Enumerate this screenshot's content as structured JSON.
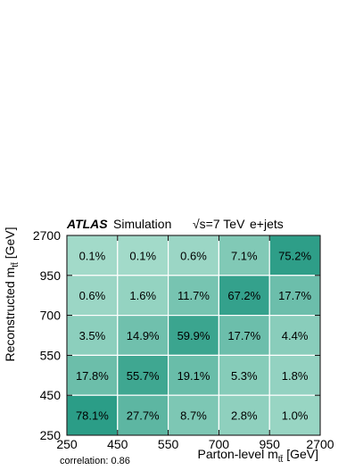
{
  "header": {
    "experiment": "ATLAS",
    "label": "Simulation",
    "energy": "√s=7 TeV",
    "channel": "e+jets"
  },
  "footer": {
    "correlation": "correlation: 0.86"
  },
  "colors": {
    "low": "#a6dccb",
    "high": "#2a9c86",
    "grid": "#ffffff"
  },
  "chart_data": {
    "type": "heatmap",
    "xlabel": "Parton-level m",
    "xlabel_sub": "tt̄",
    "xlabel_unit": " [GeV]",
    "ylabel": "Reconstructed m",
    "ylabel_sub": "tt̄",
    "ylabel_unit": " [GeV]",
    "x_bin_edges": [
      "250",
      "450",
      "550",
      "700",
      "950",
      "2700"
    ],
    "y_bin_edges": [
      "250",
      "450",
      "550",
      "700",
      "950",
      "2700"
    ],
    "grid": true,
    "rows_top_to_bottom": [
      [
        "0.1%",
        "0.1%",
        "0.6%",
        "7.1%",
        "75.2%"
      ],
      [
        "0.6%",
        "1.6%",
        "11.7%",
        "67.2%",
        "17.7%"
      ],
      [
        "3.5%",
        "14.9%",
        "59.9%",
        "17.7%",
        "4.4%"
      ],
      [
        "17.8%",
        "55.7%",
        "19.1%",
        "5.3%",
        "1.8%"
      ],
      [
        "78.1%",
        "27.7%",
        "8.7%",
        "2.8%",
        "1.0%"
      ]
    ]
  }
}
